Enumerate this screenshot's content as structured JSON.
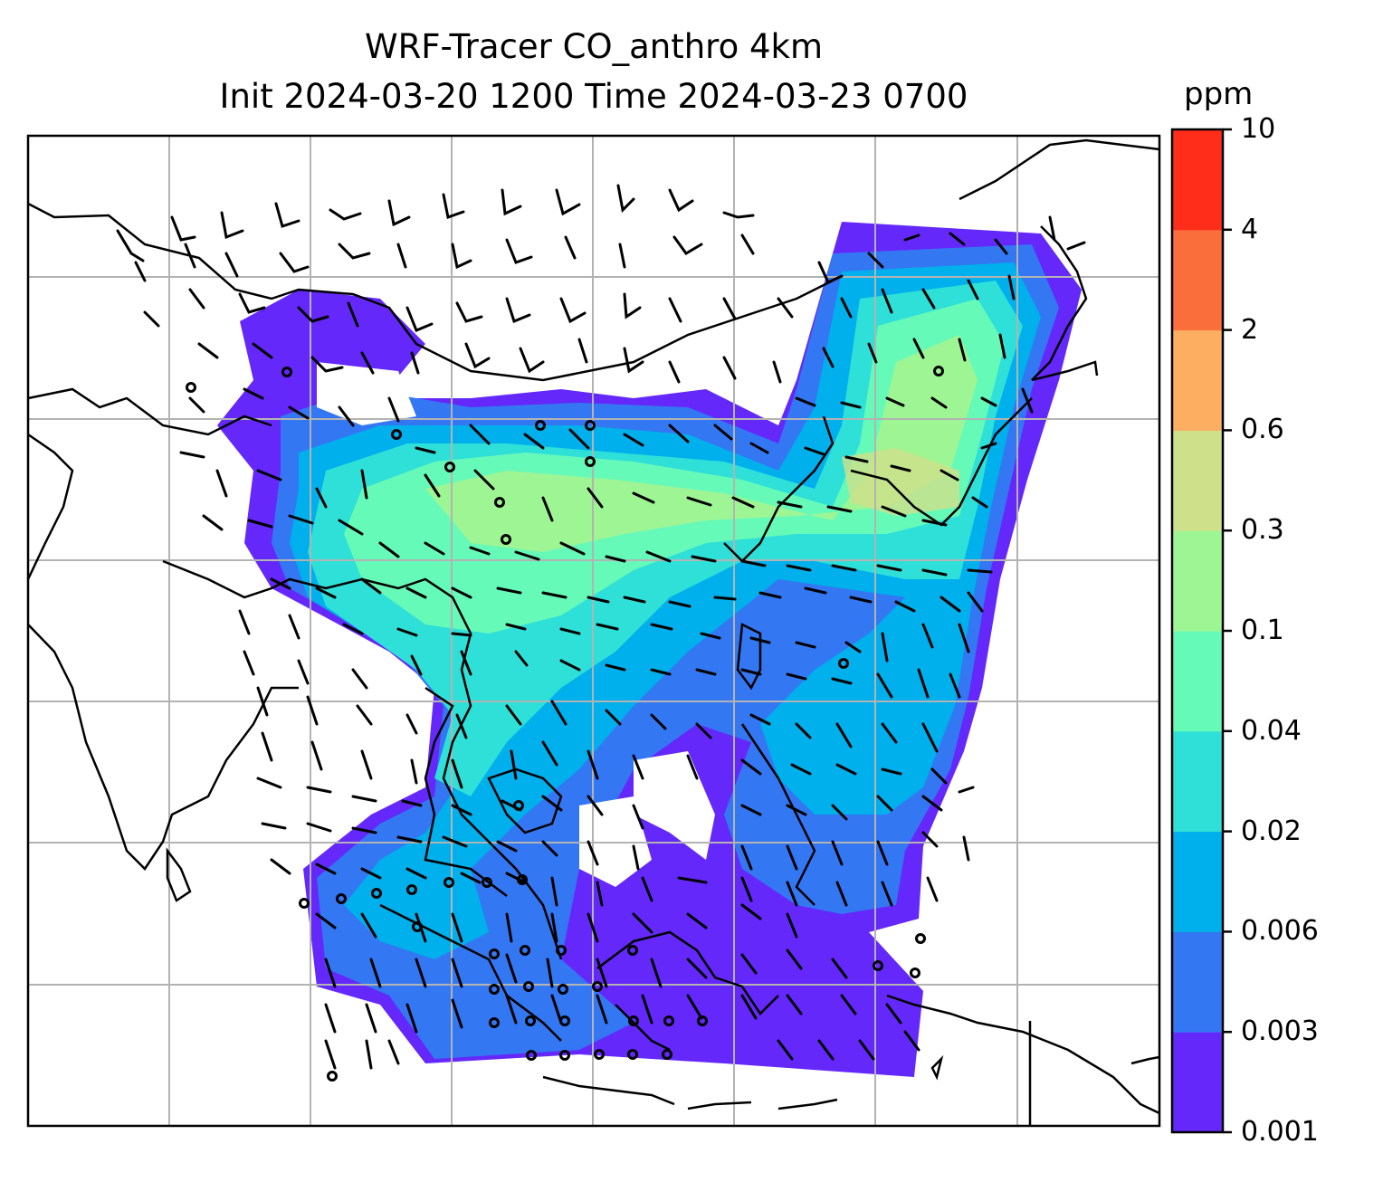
{
  "title_line1": "WRF-Tracer CO_anthro 4km",
  "title_line2": "Init 2024-03-20 1200 Time 2024-03-23 0700",
  "colorbar": {
    "unit": "ppm",
    "tick_labels": [
      "0.001",
      "0.003",
      "0.006",
      "0.02",
      "0.04",
      "0.1",
      "0.3",
      "0.6",
      "2",
      "4",
      "10"
    ],
    "colors": [
      "#6428fa",
      "#3377f3",
      "#00b0ec",
      "#2ee0d8",
      "#66fab8",
      "#9ef594",
      "#cfe08a",
      "#fdae61",
      "#f96e3a",
      "#ff2d1a"
    ]
  },
  "map": {
    "background": "#ffffff",
    "gridlines": true,
    "coastlines": true,
    "wind_barbs": true,
    "land_outline_color": "#000000",
    "grid_color": "#b3b3b3"
  }
}
